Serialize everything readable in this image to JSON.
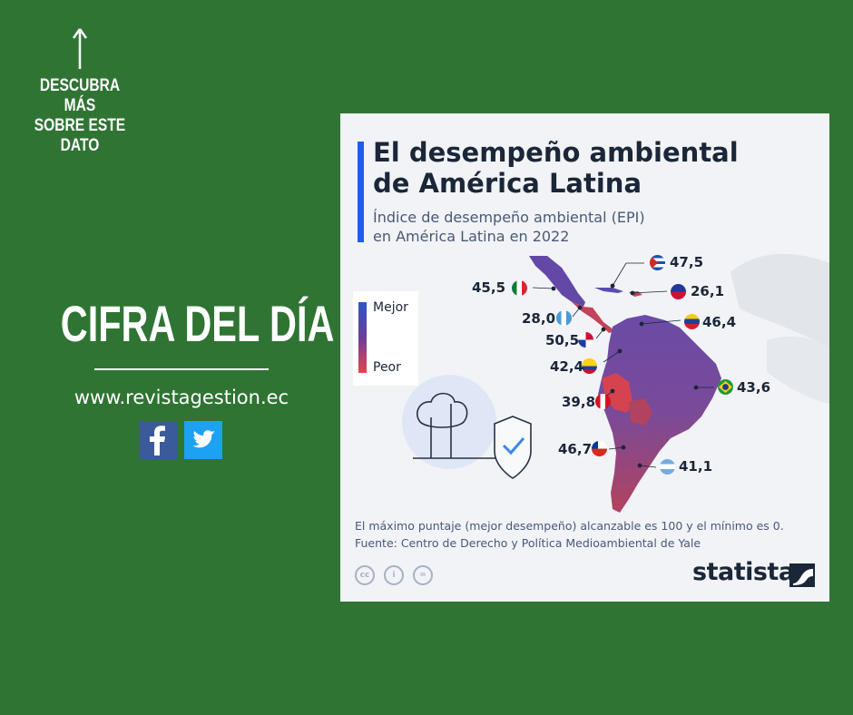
{
  "promo": {
    "discover_lines": [
      "DESCUBRA MÁS",
      "SOBRE ESTE",
      "DATO"
    ],
    "headline": "CIFRA DEL DÍA",
    "website": "www.revistagestion.ec",
    "social_icons": [
      "facebook-icon",
      "twitter-icon"
    ]
  },
  "card": {
    "title_line1": "El desempeño ambiental",
    "title_line2": "de América Latina",
    "subtitle_line1": "Índice de desempeño ambiental (EPI)",
    "subtitle_line2": "en América Latina en 2022",
    "legend_top": "Mejor",
    "legend_bottom": "Peor",
    "footnote_line1": "El máximo puntaje (mejor desempeño) alcanzable es 100 y el mínimo es 0.",
    "footnote_line2": "Fuente: Centro de Derecho y Política Medioambiental de Yale",
    "brand": "statista",
    "license_icons": [
      "cc-icon",
      "attribution-icon",
      "no-derivatives-icon"
    ]
  },
  "colors": {
    "page_bg": "#2f7433",
    "card_bg": "#f1f3f6",
    "accent_bar": "#1f5cf0",
    "scale_best": "#2d54c9",
    "scale_worst": "#e8434a"
  },
  "map_data": {
    "countries": [
      {
        "country": "Cuba",
        "epi": "47,5",
        "flag": "cuba-flag"
      },
      {
        "country": "México",
        "epi": "45,5",
        "flag": "mexico-flag"
      },
      {
        "country": "Haití",
        "epi": "26,1",
        "flag": "haiti-flag"
      },
      {
        "country": "Guatemala",
        "epi": "28,0",
        "flag": "guatemala-flag"
      },
      {
        "country": "Venezuela",
        "epi": "46,4",
        "flag": "venezuela-flag"
      },
      {
        "country": "Panamá",
        "epi": "50,5",
        "flag": "panama-flag"
      },
      {
        "country": "Colombia",
        "epi": "42,4",
        "flag": "colombia-flag"
      },
      {
        "country": "Brasil",
        "epi": "43,6",
        "flag": "brazil-flag"
      },
      {
        "country": "Perú",
        "epi": "39,8",
        "flag": "peru-flag"
      },
      {
        "country": "Chile",
        "epi": "46,7",
        "flag": "chile-flag"
      },
      {
        "country": "Argentina",
        "epi": "41,1",
        "flag": "argentina-flag"
      }
    ]
  }
}
